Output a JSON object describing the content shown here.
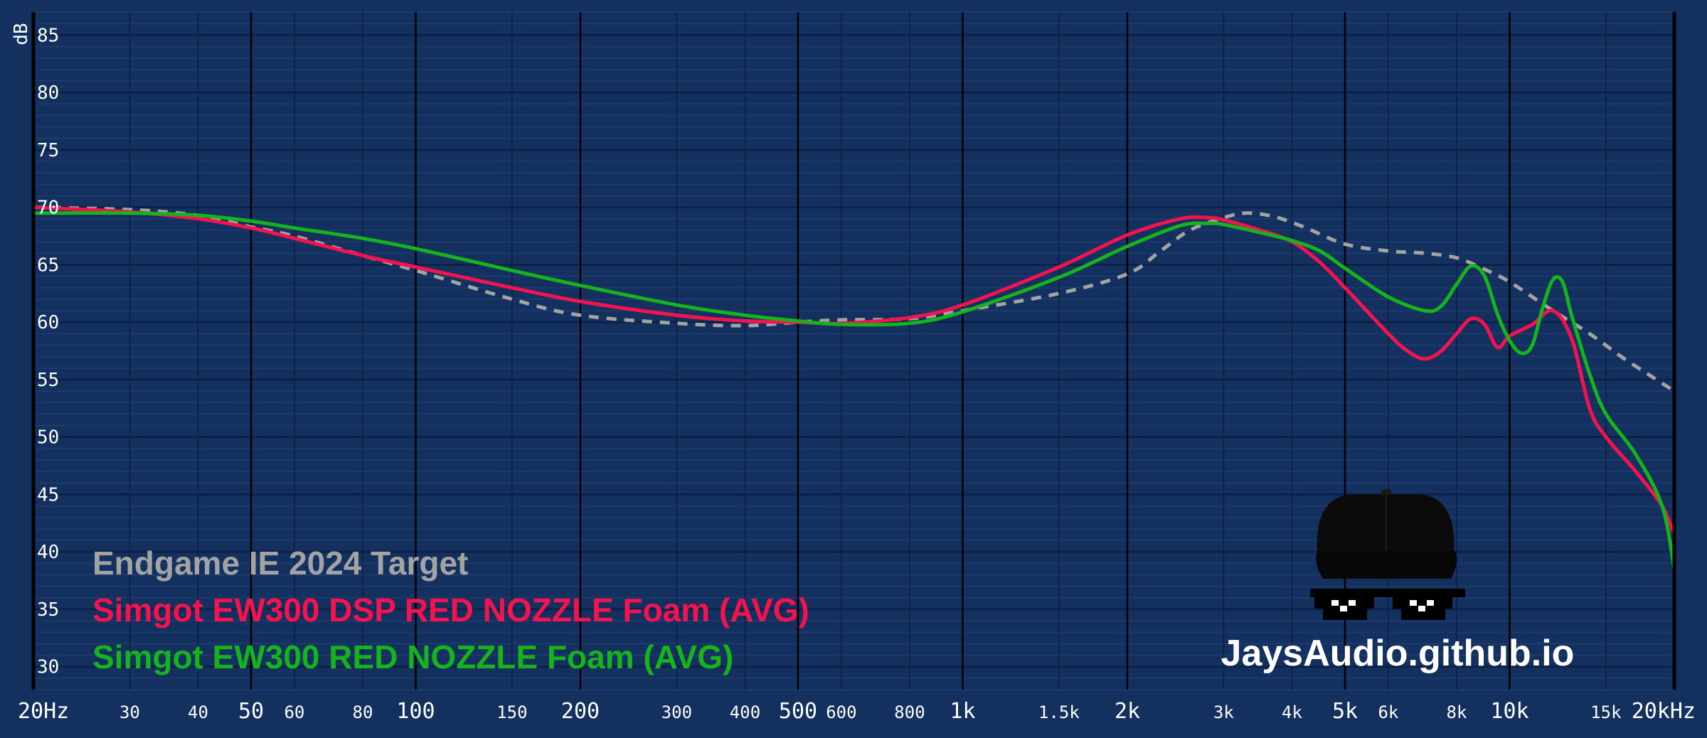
{
  "chart_data": {
    "type": "line",
    "y_unit_label": "dB",
    "ylim": [
      28,
      87
    ],
    "y_ticks": [
      30,
      35,
      40,
      45,
      50,
      55,
      60,
      65,
      70,
      75,
      80,
      85
    ],
    "xlim": [
      20,
      20000
    ],
    "x_scale": "log",
    "x_ticks": [
      {
        "value": 20,
        "label": "20Hz",
        "major": true
      },
      {
        "value": 30,
        "label": "30",
        "major": false
      },
      {
        "value": 40,
        "label": "40",
        "major": false
      },
      {
        "value": 50,
        "label": "50",
        "major": true
      },
      {
        "value": 60,
        "label": "60",
        "major": false
      },
      {
        "value": 80,
        "label": "80",
        "major": false
      },
      {
        "value": 100,
        "label": "100",
        "major": true
      },
      {
        "value": 150,
        "label": "150",
        "major": false
      },
      {
        "value": 200,
        "label": "200",
        "major": true
      },
      {
        "value": 300,
        "label": "300",
        "major": false
      },
      {
        "value": 400,
        "label": "400",
        "major": false
      },
      {
        "value": 500,
        "label": "500",
        "major": true
      },
      {
        "value": 600,
        "label": "600",
        "major": false
      },
      {
        "value": 800,
        "label": "800",
        "major": false
      },
      {
        "value": 1000,
        "label": "1k",
        "major": true
      },
      {
        "value": 1500,
        "label": "1.5k",
        "major": false
      },
      {
        "value": 2000,
        "label": "2k",
        "major": true
      },
      {
        "value": 3000,
        "label": "3k",
        "major": false
      },
      {
        "value": 4000,
        "label": "4k",
        "major": false
      },
      {
        "value": 5000,
        "label": "5k",
        "major": true
      },
      {
        "value": 6000,
        "label": "6k",
        "major": false
      },
      {
        "value": 8000,
        "label": "8k",
        "major": false
      },
      {
        "value": 10000,
        "label": "10k",
        "major": true
      },
      {
        "value": 15000,
        "label": "15k",
        "major": false
      },
      {
        "value": 20000,
        "label": "20kHz",
        "major": true
      }
    ],
    "grid": true,
    "legend_position": "bottom-left",
    "series": [
      {
        "name": "Endgame IE 2024 Target",
        "color": "#a3a3a3",
        "dashed": true,
        "points": [
          [
            20,
            70
          ],
          [
            30,
            69.8
          ],
          [
            40,
            69.3
          ],
          [
            50,
            68.3
          ],
          [
            60,
            67.5
          ],
          [
            80,
            65.8
          ],
          [
            100,
            64.5
          ],
          [
            150,
            62
          ],
          [
            200,
            60.6
          ],
          [
            300,
            59.9
          ],
          [
            400,
            59.7
          ],
          [
            500,
            60
          ],
          [
            600,
            60.2
          ],
          [
            800,
            60.3
          ],
          [
            1000,
            61
          ],
          [
            1500,
            62.5
          ],
          [
            2000,
            64.2
          ],
          [
            2300,
            66.2
          ],
          [
            2600,
            68
          ],
          [
            3000,
            69.1
          ],
          [
            3300,
            69.5
          ],
          [
            3700,
            69.2
          ],
          [
            4200,
            68.3
          ],
          [
            5000,
            66.8
          ],
          [
            6000,
            66.2
          ],
          [
            7000,
            66
          ],
          [
            8000,
            65.6
          ],
          [
            9000,
            64.6
          ],
          [
            10000,
            63.5
          ],
          [
            12000,
            61
          ],
          [
            14000,
            59
          ],
          [
            16000,
            57
          ],
          [
            18000,
            55.4
          ],
          [
            20000,
            54
          ]
        ]
      },
      {
        "name": "Simgot EW300 DSP RED NOZZLE Foam (AVG)",
        "color": "#f4134f",
        "dashed": false,
        "points": [
          [
            20,
            70
          ],
          [
            30,
            69.6
          ],
          [
            40,
            69
          ],
          [
            50,
            68.2
          ],
          [
            60,
            67.3
          ],
          [
            80,
            65.8
          ],
          [
            100,
            64.8
          ],
          [
            150,
            63
          ],
          [
            200,
            61.8
          ],
          [
            300,
            60.6
          ],
          [
            400,
            60.1
          ],
          [
            500,
            60
          ],
          [
            600,
            59.9
          ],
          [
            800,
            60.4
          ],
          [
            1000,
            61.5
          ],
          [
            1500,
            64.8
          ],
          [
            2000,
            67.6
          ],
          [
            2500,
            69
          ],
          [
            2800,
            69.1
          ],
          [
            3000,
            68.9
          ],
          [
            3500,
            68
          ],
          [
            4000,
            67
          ],
          [
            4500,
            65.2
          ],
          [
            5000,
            63
          ],
          [
            6000,
            59
          ],
          [
            6500,
            57.5
          ],
          [
            7000,
            56.8
          ],
          [
            7500,
            57.5
          ],
          [
            8000,
            59
          ],
          [
            8500,
            60.3
          ],
          [
            9000,
            59.8
          ],
          [
            9500,
            57.8
          ],
          [
            10000,
            58.8
          ],
          [
            11000,
            59.8
          ],
          [
            12000,
            61
          ],
          [
            13000,
            58.5
          ],
          [
            14000,
            52.5
          ],
          [
            15000,
            50
          ],
          [
            17000,
            47
          ],
          [
            19000,
            44
          ],
          [
            20000,
            41.5
          ]
        ]
      },
      {
        "name": "Simgot EW300 RED NOZZLE Foam (AVG)",
        "color": "#17b31c",
        "dashed": false,
        "points": [
          [
            20,
            69.5
          ],
          [
            30,
            69.5
          ],
          [
            40,
            69.3
          ],
          [
            50,
            68.8
          ],
          [
            60,
            68.2
          ],
          [
            80,
            67.3
          ],
          [
            100,
            66.4
          ],
          [
            150,
            64.5
          ],
          [
            200,
            63.2
          ],
          [
            300,
            61.5
          ],
          [
            400,
            60.6
          ],
          [
            500,
            60.1
          ],
          [
            600,
            59.8
          ],
          [
            800,
            59.9
          ],
          [
            1000,
            60.9
          ],
          [
            1500,
            63.9
          ],
          [
            2000,
            66.6
          ],
          [
            2500,
            68.4
          ],
          [
            2800,
            68.6
          ],
          [
            3000,
            68.5
          ],
          [
            3500,
            67.8
          ],
          [
            4000,
            67.1
          ],
          [
            4500,
            66.2
          ],
          [
            5000,
            64.7
          ],
          [
            6000,
            62.2
          ],
          [
            7000,
            61
          ],
          [
            7500,
            61.4
          ],
          [
            8000,
            63.3
          ],
          [
            8500,
            64.9
          ],
          [
            9000,
            64
          ],
          [
            9500,
            60.7
          ],
          [
            10000,
            58.4
          ],
          [
            10500,
            57.3
          ],
          [
            11000,
            58
          ],
          [
            11500,
            61.3
          ],
          [
            12000,
            63.7
          ],
          [
            12500,
            63.5
          ],
          [
            13000,
            60.5
          ],
          [
            14000,
            55.5
          ],
          [
            15000,
            52
          ],
          [
            17000,
            48.5
          ],
          [
            19000,
            44
          ],
          [
            20000,
            38.5
          ]
        ]
      }
    ]
  },
  "watermark": "JaysAudio.github.io"
}
